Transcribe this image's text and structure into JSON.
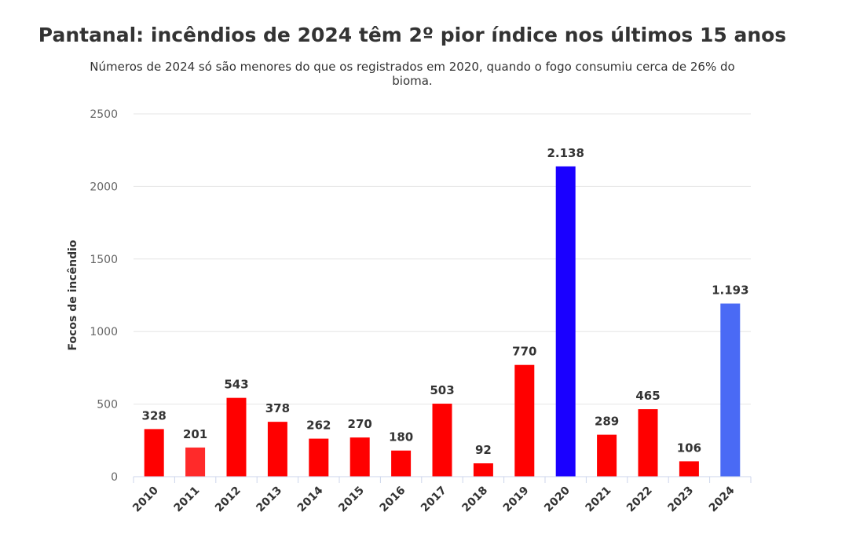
{
  "chart_data": {
    "type": "bar",
    "title": "Pantanal: incêndios de 2024 têm 2º pior índice nos últimos 15 anos",
    "subtitle": "Números de 2024 só são menores do que os registrados em 2020, quando o fogo consumiu cerca de 26% do bioma.",
    "xlabel": "",
    "ylabel": "Focos de incêndio",
    "ylim": [
      0,
      2500
    ],
    "yticks": [
      "0",
      "500",
      "1000",
      "1500",
      "2000",
      "2500"
    ],
    "grid": true,
    "categories": [
      "2010",
      "2011",
      "2012",
      "2013",
      "2014",
      "2015",
      "2016",
      "2017",
      "2018",
      "2019",
      "2020",
      "2021",
      "2022",
      "2023",
      "2024"
    ],
    "values": [
      328,
      201,
      543,
      378,
      262,
      270,
      180,
      503,
      92,
      770,
      2138,
      289,
      465,
      106,
      1193
    ],
    "data_labels": [
      "328",
      "201",
      "543",
      "378",
      "262",
      "270",
      "180",
      "503",
      "92",
      "770",
      "2.138",
      "289",
      "465",
      "106",
      "1.193"
    ],
    "colors": [
      "#ff0000",
      "#ff2a2a",
      "#ff0000",
      "#ff0000",
      "#ff0000",
      "#ff0000",
      "#ff0000",
      "#ff0000",
      "#ff0000",
      "#ff0000",
      "#1a00ff",
      "#ff0000",
      "#ff0000",
      "#ff0000",
      "#4a6af5"
    ]
  }
}
